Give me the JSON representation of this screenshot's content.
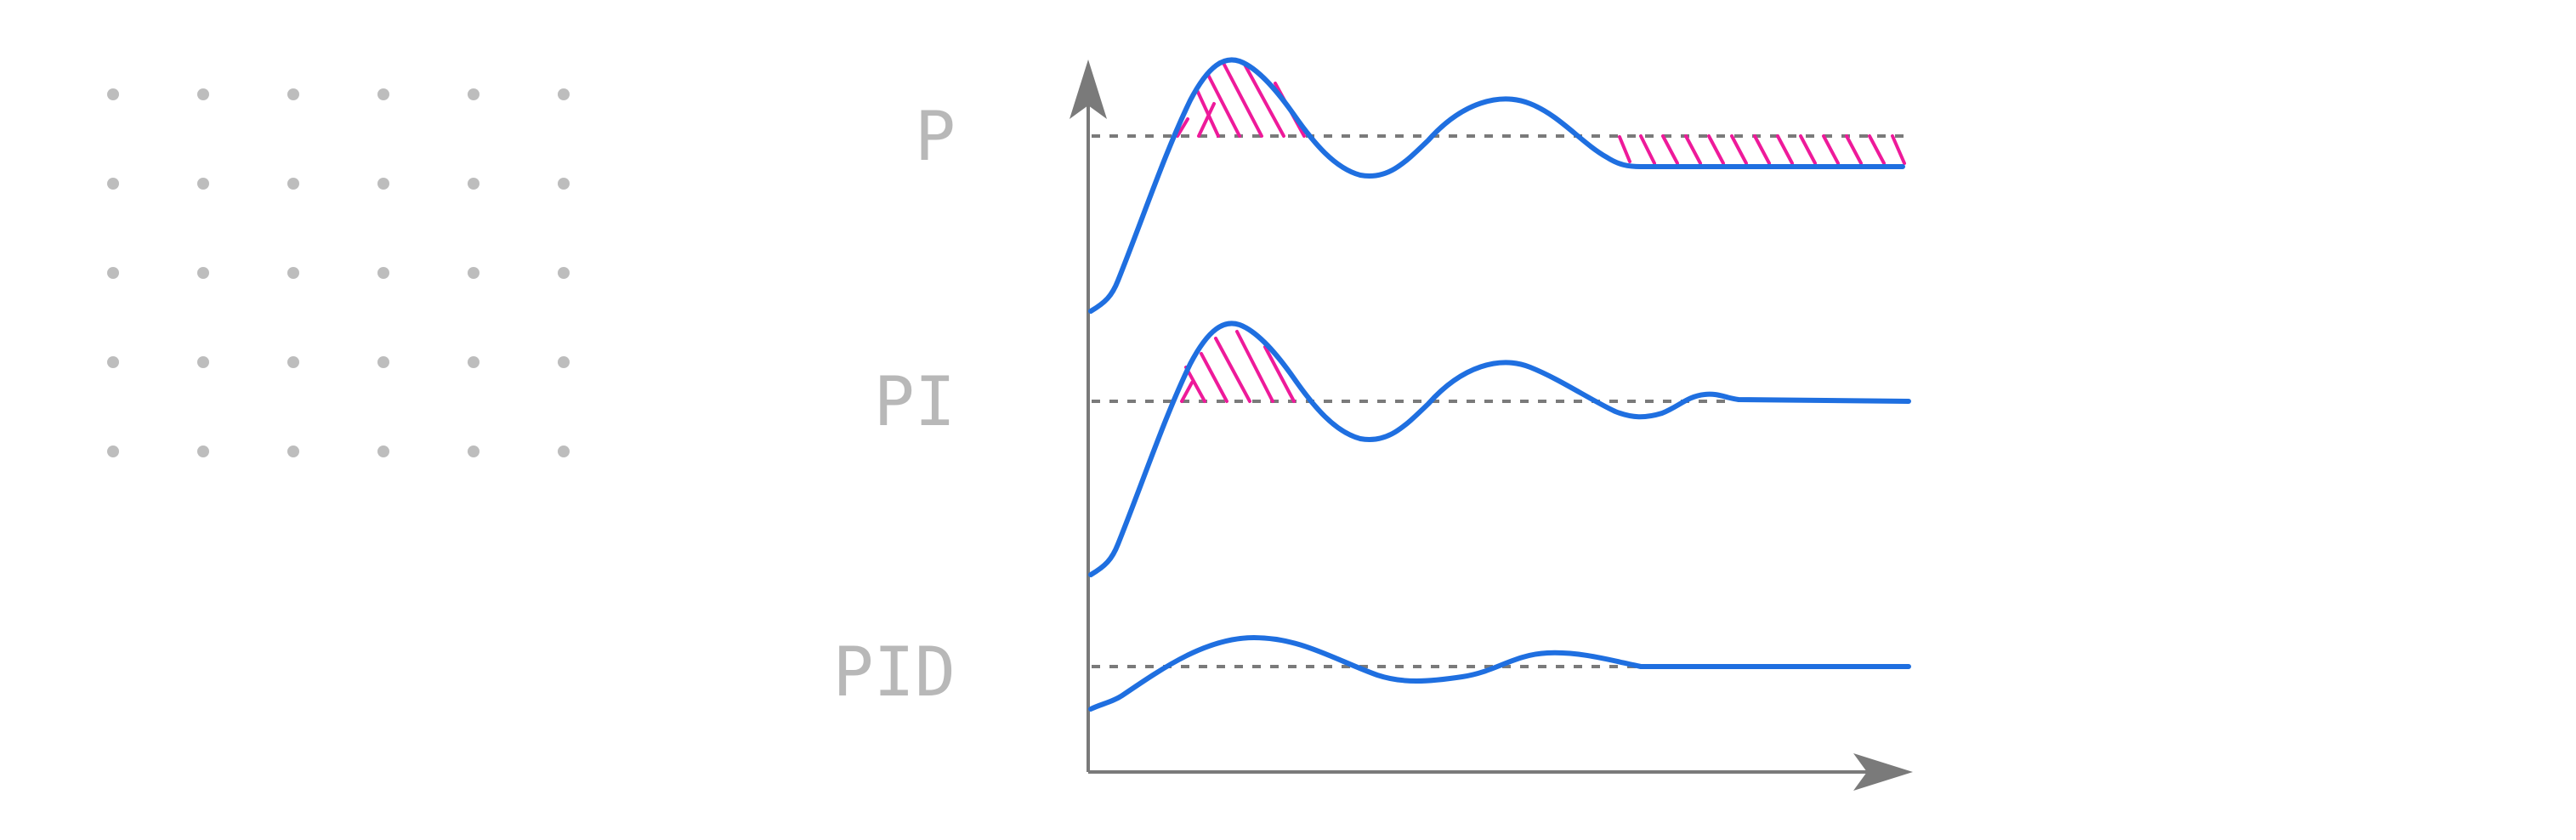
{
  "colors": {
    "response_curve": "#1f6fe0",
    "error_hatch": "#ee1a9a",
    "axis": "#7a7a7a",
    "setpoint_line": "#7a7a7a",
    "labels": "#b8b8b8",
    "dots": "#bdbdbd"
  },
  "rows": [
    {
      "label": "P",
      "hatched_regions": [
        "overshoot",
        "steady-state-error"
      ]
    },
    {
      "label": "PI",
      "hatched_regions": [
        "overshoot"
      ]
    },
    {
      "label": "PID",
      "hatched_regions": []
    }
  ]
}
